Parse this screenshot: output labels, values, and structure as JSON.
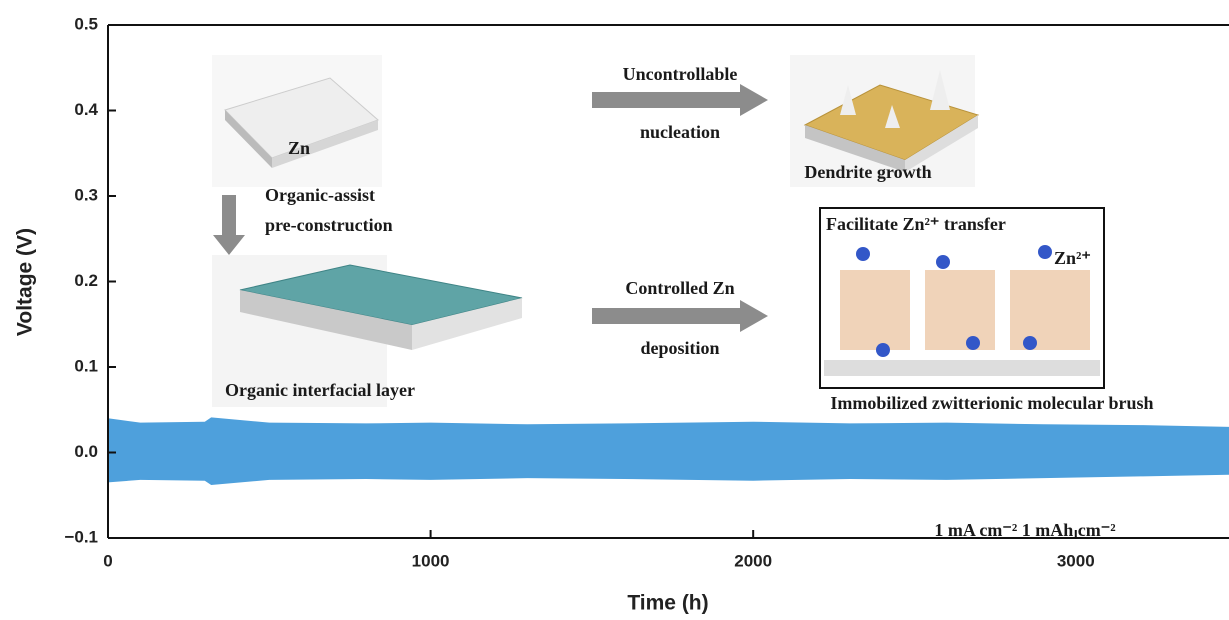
{
  "chart_data": {
    "type": "band",
    "x_label": "Time (h)",
    "y_label": "Voltage (V)",
    "x": [
      0,
      100,
      300,
      320,
      500,
      800,
      1000,
      1300,
      1600,
      2000,
      2300,
      2600,
      2900,
      3200,
      3475
    ],
    "upper": [
      0.04,
      0.035,
      0.036,
      0.041,
      0.035,
      0.034,
      0.035,
      0.033,
      0.034,
      0.036,
      0.034,
      0.035,
      0.033,
      0.032,
      0.03
    ],
    "lower": [
      -0.035,
      -0.032,
      -0.033,
      -0.038,
      -0.032,
      -0.031,
      -0.032,
      -0.03,
      -0.031,
      -0.033,
      -0.031,
      -0.032,
      -0.03,
      -0.028,
      -0.026
    ],
    "color": "#4ea0dc",
    "xlim": [
      0,
      3475
    ],
    "ylim": [
      -0.1,
      0.5
    ],
    "xticks": [
      0,
      1000,
      2000,
      3000
    ],
    "yticks": [
      {
        "value": -0.1,
        "label": "−0.1"
      },
      {
        "value": 0,
        "label": "0.0"
      },
      0.1,
      0.2,
      0.3,
      0.4,
      0.5
    ],
    "annotations": [
      "Zn",
      "Organic-assist",
      "pre-construction",
      "Uncontrollable",
      "nucleation",
      "Dendrite growth",
      "Organic interfacial layer",
      "Controlled Zn",
      "deposition",
      "Facilitate Zn²⁺ transfer",
      "Zn²⁺",
      "Immobilized zwitterionic molecular brush",
      "1 mA cm⁻²  1 mAh cm⁻²"
    ]
  }
}
